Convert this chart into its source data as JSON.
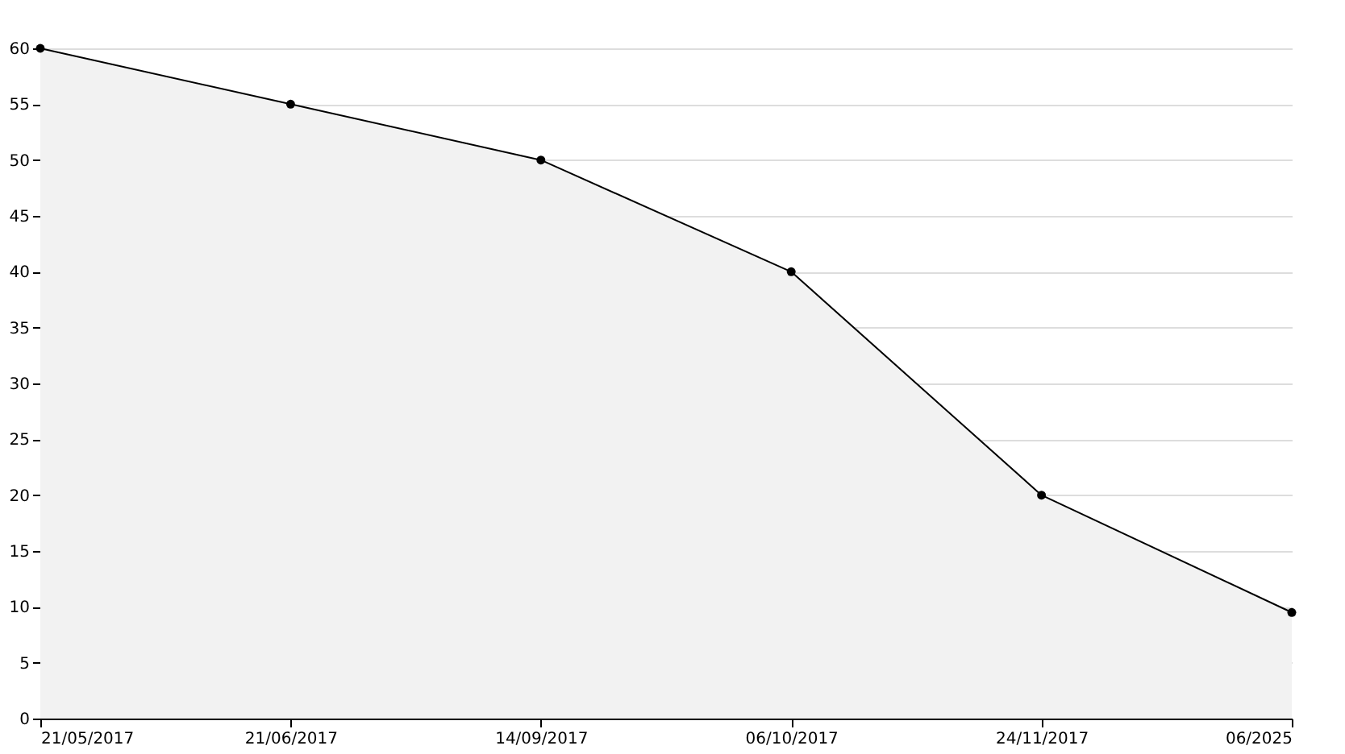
{
  "chart_data": {
    "type": "area",
    "categories": [
      "21/05/2017",
      "21/06/2017",
      "14/09/2017",
      "06/10/2017",
      "24/11/2017",
      "06/2025"
    ],
    "series": [
      {
        "color": "#f2f2f2",
        "values": [
          60,
          55,
          50,
          40,
          20,
          9.5
        ]
      }
    ],
    "ylim": [
      0,
      60
    ],
    "yticks": [
      0,
      5,
      10,
      15,
      20,
      25,
      30,
      35,
      40,
      45,
      50,
      55,
      60
    ],
    "grid": "y",
    "marker": "circle",
    "line_style": "solid"
  }
}
